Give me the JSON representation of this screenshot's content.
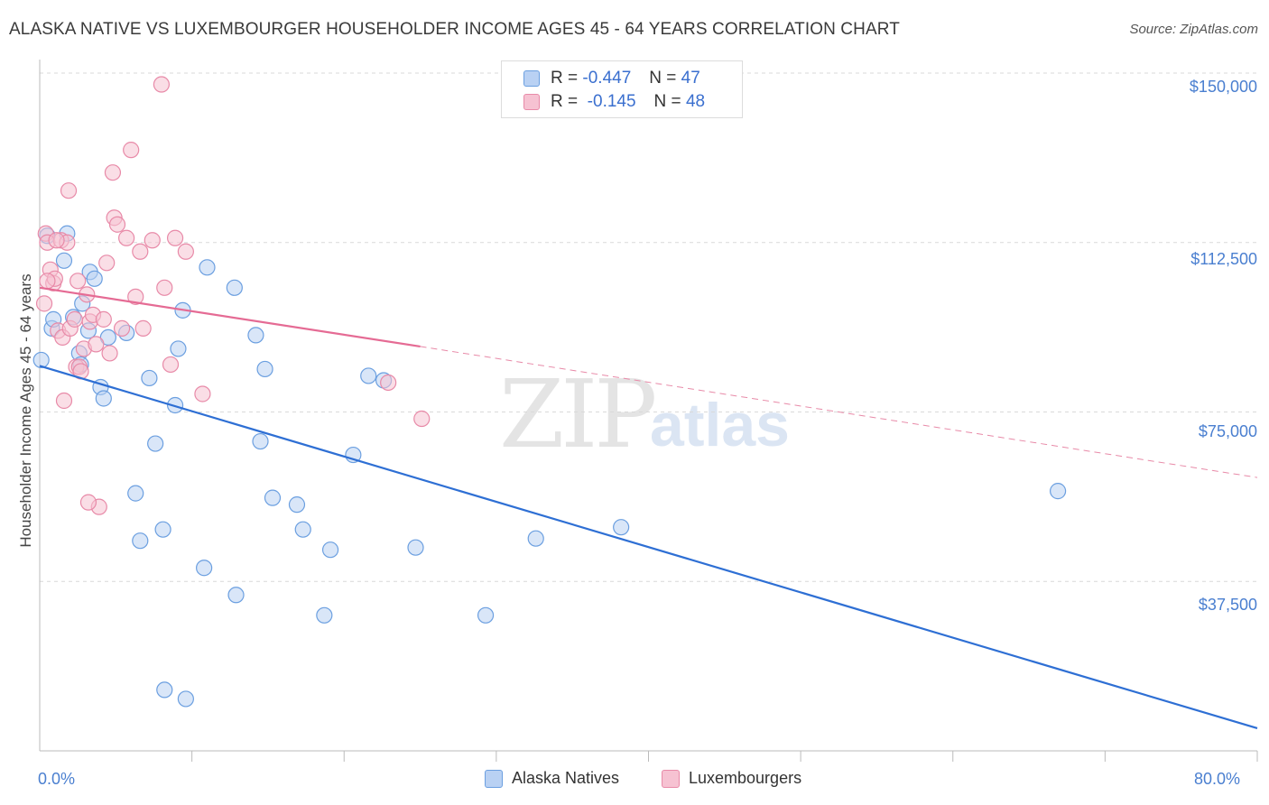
{
  "title": "ALASKA NATIVE VS LUXEMBOURGER HOUSEHOLDER INCOME AGES 45 - 64 YEARS CORRELATION CHART",
  "source": "Source: ZipAtlas.com",
  "watermark": {
    "zip": "ZIP",
    "atlas": "atlas"
  },
  "legend": {
    "rows": [
      {
        "r_label": "R =",
        "r_value": "-0.447",
        "n_label": "N =",
        "n_value": "47"
      },
      {
        "r_label": "R =",
        "r_value": "-0.145",
        "n_label": "N =",
        "n_value": "48"
      }
    ]
  },
  "chart_data": {
    "type": "scatter",
    "title": "ALASKA NATIVE VS LUXEMBOURGER HOUSEHOLDER INCOME AGES 45 - 64 YEARS CORRELATION CHART",
    "xlabel": "",
    "ylabel": "Householder Income Ages 45 - 64 years",
    "xlim": [
      0,
      80
    ],
    "ylim": [
      0,
      153000
    ],
    "x_tick_labels": [
      "0.0%",
      "80.0%"
    ],
    "y_ticks": [
      {
        "value": 37500,
        "label": "$37,500"
      },
      {
        "value": 75000,
        "label": "$75,000"
      },
      {
        "value": 112500,
        "label": "$112,500"
      },
      {
        "value": 150000,
        "label": "$150,000"
      }
    ],
    "grid": true,
    "legend_position": "bottom-center",
    "series": [
      {
        "name": "Alaska Natives",
        "color": "#6b9fe0",
        "fill": "#b9d1f3",
        "trend": {
          "x0": 0,
          "y0": 85200,
          "x1": 80,
          "y1": 5000,
          "style": "solid"
        },
        "points": [
          [
            0.1,
            86500
          ],
          [
            0.8,
            93500
          ],
          [
            0.9,
            95500
          ],
          [
            1.6,
            108500
          ],
          [
            1.8,
            114500
          ],
          [
            2.2,
            96000
          ],
          [
            2.6,
            88000
          ],
          [
            2.7,
            85500
          ],
          [
            2.8,
            99000
          ],
          [
            3.2,
            93000
          ],
          [
            3.3,
            106000
          ],
          [
            3.6,
            104500
          ],
          [
            4.0,
            80500
          ],
          [
            4.2,
            78000
          ],
          [
            4.5,
            91500
          ],
          [
            5.7,
            92500
          ],
          [
            6.3,
            57000
          ],
          [
            6.6,
            46500
          ],
          [
            7.2,
            82500
          ],
          [
            7.6,
            68000
          ],
          [
            8.1,
            49000
          ],
          [
            8.9,
            76500
          ],
          [
            9.1,
            89000
          ],
          [
            9.4,
            97500
          ],
          [
            10.8,
            40500
          ],
          [
            11.0,
            107000
          ],
          [
            12.8,
            102500
          ],
          [
            12.9,
            34500
          ],
          [
            14.2,
            92000
          ],
          [
            14.5,
            68500
          ],
          [
            14.8,
            84500
          ],
          [
            15.3,
            56000
          ],
          [
            16.9,
            54500
          ],
          [
            17.3,
            49000
          ],
          [
            18.7,
            30000
          ],
          [
            19.1,
            44500
          ],
          [
            20.6,
            65500
          ],
          [
            21.6,
            83000
          ],
          [
            22.6,
            82000
          ],
          [
            24.7,
            45000
          ],
          [
            29.3,
            30000
          ],
          [
            32.6,
            47000
          ],
          [
            38.2,
            49500
          ],
          [
            66.9,
            57500
          ],
          [
            8.2,
            13500
          ],
          [
            9.6,
            11500
          ],
          [
            0.5,
            114000
          ]
        ]
      },
      {
        "name": "Luxembourgers",
        "color": "#e88aa8",
        "fill": "#f6c2d2",
        "trend": {
          "x0": 0,
          "y0": 102500,
          "x1": 25,
          "y1": 89500,
          "style": "solid",
          "dash_to": {
            "x": 80,
            "y": 60500
          }
        },
        "points": [
          [
            0.3,
            99000
          ],
          [
            0.4,
            114500
          ],
          [
            0.5,
            112500
          ],
          [
            0.7,
            106500
          ],
          [
            0.9,
            103500
          ],
          [
            1.0,
            104500
          ],
          [
            1.2,
            93000
          ],
          [
            1.4,
            113000
          ],
          [
            1.5,
            91500
          ],
          [
            1.6,
            77500
          ],
          [
            1.8,
            112500
          ],
          [
            1.9,
            124000
          ],
          [
            2.0,
            93500
          ],
          [
            2.3,
            95500
          ],
          [
            2.4,
            85000
          ],
          [
            2.5,
            104000
          ],
          [
            2.6,
            85000
          ],
          [
            2.7,
            84000
          ],
          [
            2.9,
            89000
          ],
          [
            3.1,
            101000
          ],
          [
            3.3,
            95000
          ],
          [
            3.5,
            96500
          ],
          [
            3.7,
            90000
          ],
          [
            3.9,
            54000
          ],
          [
            4.2,
            95500
          ],
          [
            4.4,
            108000
          ],
          [
            4.6,
            88000
          ],
          [
            4.8,
            128000
          ],
          [
            4.9,
            118000
          ],
          [
            5.1,
            116500
          ],
          [
            5.4,
            93500
          ],
          [
            5.7,
            113500
          ],
          [
            6.0,
            133000
          ],
          [
            6.3,
            100500
          ],
          [
            6.6,
            110500
          ],
          [
            6.8,
            93500
          ],
          [
            7.4,
            113000
          ],
          [
            8.0,
            147500
          ],
          [
            8.2,
            102500
          ],
          [
            8.6,
            85500
          ],
          [
            8.9,
            113500
          ],
          [
            9.6,
            110500
          ],
          [
            10.7,
            79000
          ],
          [
            22.9,
            81500
          ],
          [
            25.1,
            73500
          ],
          [
            0.5,
            104000
          ],
          [
            3.2,
            55000
          ],
          [
            1.1,
            113000
          ]
        ]
      }
    ]
  }
}
